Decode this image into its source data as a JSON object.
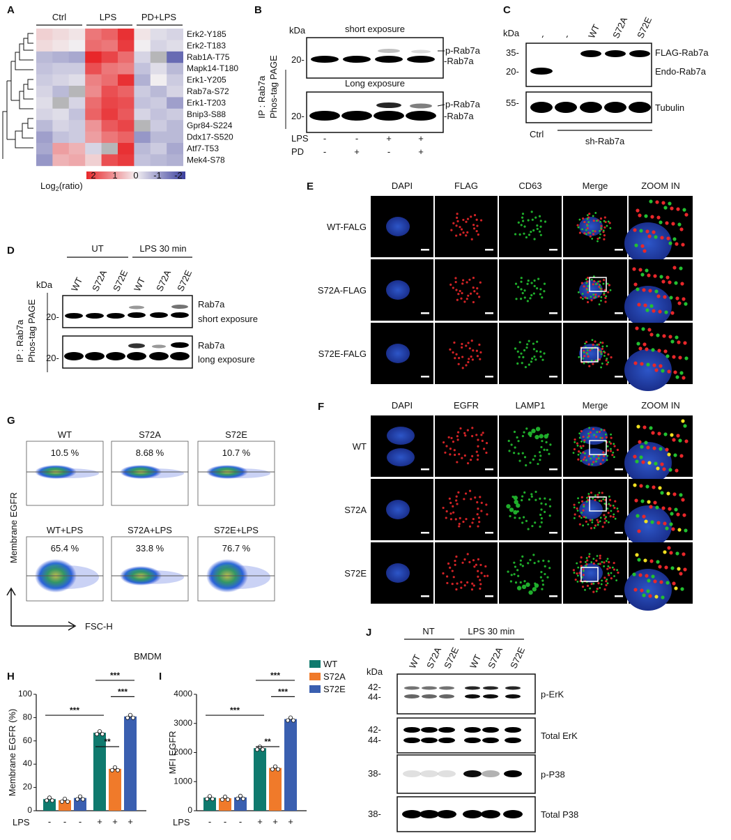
{
  "panels": {
    "A": {
      "letter": "A",
      "groups": [
        "Ctrl",
        "LPS",
        "PD+LPS"
      ],
      "rows": [
        "Erk2-Y185",
        "Erk2-T183",
        "Rab1A-T75",
        "Mapk14-T180",
        "Erk1-Y205",
        "Rab7a-S72",
        "Erk1-T203",
        "Bnip3-S88",
        "Gpr84-S224",
        "Ddx17-S520",
        "Atf7-T53",
        "Mek4-S78"
      ],
      "scale_ticks": [
        "2",
        "1",
        "0",
        "-1",
        "-2"
      ],
      "scale_label_pre": "Log",
      "scale_label_sub": "2",
      "scale_label_post": "(ratio)",
      "colors": {
        "high": "#e8272a",
        "mid": "#f1eef0",
        "low": "#3a3f9e"
      }
    },
    "B": {
      "letter": "B",
      "kda": "kDa",
      "top_label": "short exposure",
      "mid_label": "Long  exposure",
      "side1": "IP : Rab7a",
      "side2": "Phos-tag  PAGE",
      "marker": "20-",
      "band_p": "p-Rab7a",
      "band": "-Rab7a",
      "row_lps": "LPS",
      "row_pd": "PD",
      "lps_vals": [
        "-",
        "-",
        "+",
        "+"
      ],
      "pd_vals": [
        "-",
        "+",
        "-",
        "+"
      ]
    },
    "C": {
      "letter": "C",
      "kda": "kDa",
      "lanes": [
        "-",
        "-",
        "WT",
        "S72A",
        "S72E"
      ],
      "m35": "35-",
      "m20": "20-",
      "m55": "55-",
      "flag": "FLAG-Rab7a",
      "endo": "Endo-Rab7a",
      "tubulin": "Tubulin",
      "ctrl": "Ctrl",
      "sh": "sh-Rab7a"
    },
    "D": {
      "letter": "D",
      "ut": "UT",
      "lps": "LPS  30 min",
      "kda": "kDa",
      "lanes": [
        "WT",
        "S72A",
        "S72E",
        "WT",
        "S72A",
        "S72E"
      ],
      "side1": "IP : Rab7a",
      "side2": "Phos-tag  PAGE",
      "marker": "20-",
      "r1a": "Rab7a",
      "r1b": "short exposure",
      "r2a": "Rab7a",
      "r2b": "long exposure"
    },
    "E": {
      "letter": "E",
      "cols": [
        "DAPI",
        "FLAG",
        "CD63",
        "Merge",
        "ZOOM IN"
      ],
      "rows": [
        "WT-FALG",
        "S72A-FLAG",
        "S72E-FALG"
      ],
      "col_colors": [
        "#111111",
        "#e8272a",
        "#1aa52a",
        "#111111",
        "#111111"
      ]
    },
    "F": {
      "letter": "F",
      "cols": [
        "DAPI",
        "EGFR",
        "LAMP1",
        "Merge",
        "ZOOM IN"
      ],
      "rows": [
        "WT",
        "S72A",
        "S72E"
      ],
      "col_colors": [
        "#111111",
        "#e8272a",
        "#1aa52a",
        "#111111",
        "#111111"
      ]
    },
    "G": {
      "letter": "G",
      "titles": [
        "WT",
        "S72A",
        "S72E",
        "WT+LPS",
        "S72A+LPS",
        "S72E+LPS"
      ],
      "percents": [
        "10.5  %",
        "8.68  %",
        "10.7  %",
        "65.4  %",
        "33.8  %",
        "76.7  %"
      ],
      "ylabel": "Membrane  EGFR",
      "xlabel": "FSC-H"
    },
    "H": {
      "letter": "H",
      "title": "BMDM"
    },
    "J": {
      "letter": "J",
      "nt": "NT",
      "lps": "LPS  30 min",
      "kda": "kDa",
      "lanes": [
        "WT",
        "S72A",
        "S72E",
        "WT",
        "S72A",
        "S72E"
      ],
      "m42": "42-",
      "m44": "44-",
      "m38": "38-",
      "labels": [
        "p-ErK",
        "Total ErK",
        "p-P38",
        "Total P38"
      ]
    }
  },
  "legend": [
    {
      "name": "WT",
      "color": "#0f7a6e"
    },
    {
      "name": "S72A",
      "color": "#f07a2a"
    },
    {
      "name": "S72E",
      "color": "#3a5fb0"
    }
  ],
  "chart_data": [
    {
      "type": "bar",
      "panel": "H",
      "ylabel": "Membrane EGFR (%)",
      "ylim": [
        0,
        100
      ],
      "yticks": [
        "0",
        "20",
        "40",
        "60",
        "80",
        "100"
      ],
      "categories": [
        "WT",
        "S72A",
        "S72E",
        "WT",
        "S72A",
        "S72E"
      ],
      "lps": [
        "-",
        "-",
        "-",
        "+",
        "+",
        "+"
      ],
      "xrow_label": "LPS",
      "values": [
        10,
        9,
        11,
        67,
        36,
        81
      ],
      "colors": [
        "#0f7a6e",
        "#f07a2a",
        "#3a5fb0",
        "#0f7a6e",
        "#f07a2a",
        "#3a5fb0"
      ],
      "significance": [
        "***",
        "**",
        "***",
        "***"
      ]
    },
    {
      "type": "bar",
      "panel": "I",
      "ylabel": "MFI EGFR",
      "ylim": [
        0,
        4000
      ],
      "yticks": [
        "0",
        "1000",
        "2000",
        "3000",
        "4000"
      ],
      "categories": [
        "WT",
        "S72A",
        "S72E",
        "WT",
        "S72A",
        "S72E"
      ],
      "lps": [
        "-",
        "-",
        "-",
        "+",
        "+",
        "+"
      ],
      "xrow_label": "LPS",
      "values": [
        450,
        430,
        460,
        2150,
        1470,
        3150
      ],
      "colors": [
        "#0f7a6e",
        "#f07a2a",
        "#3a5fb0",
        "#0f7a6e",
        "#f07a2a",
        "#3a5fb0"
      ],
      "significance": [
        "***",
        "**",
        "***",
        "***"
      ]
    }
  ]
}
